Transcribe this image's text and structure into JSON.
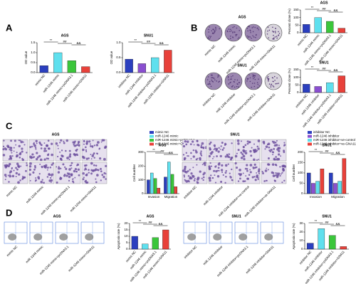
{
  "panel_labels": [
    "A",
    "B",
    "C",
    "D"
  ],
  "chart_data": [
    {
      "type": "bar",
      "title": "AGS",
      "y_label": "OD value",
      "categories": [
        "mimic NC",
        "miR-1246 mimic",
        "miR-1246 mimic+pcDNA3.1",
        "miR-1246 mimic+GNA11"
      ],
      "values": [
        0.35,
        1.0,
        0.6,
        0.3
      ],
      "colors": [
        "#2b3fbf",
        "#5fe0ee",
        "#3bc63b",
        "#e8413a"
      ],
      "ylim": [
        0,
        1.5
      ],
      "yticks": [
        {
          "value": 0,
          "label": "0.0"
        },
        0.5,
        {
          "value": 1,
          "label": "1.0"
        },
        1.5
      ],
      "annotations": [
        "**",
        "##",
        "&&"
      ]
    },
    {
      "type": "bar",
      "title": "SNU1",
      "y_label": "OD value",
      "categories": [
        "inhibitor NC",
        "miR-1246 inhibitor",
        "miR-1246 inhibitor+pcDNA3.1",
        "miR-1246 inhibitor+GNA11"
      ],
      "values": [
        0.45,
        0.3,
        0.5,
        0.75
      ],
      "colors": [
        "#2b3fbf",
        "#8a4fd0",
        "#5fe0ee",
        "#e8413a"
      ],
      "ylim": [
        0,
        1
      ],
      "yticks": [
        {
          "value": 0,
          "label": "0.0"
        },
        0.5,
        {
          "value": 1,
          "label": "1.0"
        }
      ],
      "annotations": [
        "**",
        "##",
        "&&"
      ]
    },
    {
      "type": "bar",
      "title": "AGS",
      "y_label": "Percent clone (%)",
      "categories": [
        "mimic NC",
        "miR-1246 mimic",
        "miR-1246 mimic+pcDNA3.1",
        "miR-1246 mimic+GNA11"
      ],
      "values": [
        55,
        100,
        75,
        30
      ],
      "colors": [
        "#2b3fbf",
        "#5fe0ee",
        "#3bc63b",
        "#e8413a"
      ],
      "ylim": [
        0,
        150
      ],
      "yticks": [
        0,
        50,
        100,
        150
      ],
      "annotations": [
        "**",
        "##",
        "&&"
      ]
    },
    {
      "type": "bar",
      "title": "SNU1",
      "y_label": "Percent clone (%)",
      "categories": [
        "inhibitor NC",
        "miR-1246 inhibitor",
        "miR-1246 inhibitor+pcDNA3.1",
        "miR-1246 inhibitor+GNA11"
      ],
      "values": [
        55,
        40,
        65,
        110
      ],
      "colors": [
        "#2b3fbf",
        "#8a4fd0",
        "#5fe0ee",
        "#e8413a"
      ],
      "ylim": [
        0,
        150
      ],
      "yticks": [
        0,
        50,
        100,
        150
      ],
      "annotations": [
        "**",
        "##",
        "&&"
      ]
    },
    {
      "type": "grouped_bar",
      "title": "AGS",
      "y_label": "Cell number",
      "categories": [
        "Invasion",
        "Migration"
      ],
      "series": [
        {
          "name": "mimic NC",
          "color": "#2b3fbf",
          "values": [
            100,
            120
          ]
        },
        {
          "name": "miR-1246 mimic",
          "color": "#5fe0ee",
          "values": [
            150,
            230
          ]
        },
        {
          "name": "miR-1246 mimic+pcDNA3.1",
          "color": "#3bc63b",
          "values": [
            110,
            140
          ]
        },
        {
          "name": "miR-1246 mimic+GNA11",
          "color": "#e8413a",
          "values": [
            40,
            50
          ]
        }
      ],
      "ylim": [
        0,
        300
      ],
      "yticks": [
        0,
        100,
        200,
        300
      ],
      "annotations": [
        "**",
        "##",
        "&&"
      ]
    },
    {
      "type": "grouped_bar",
      "title": "SNU1",
      "y_label": "Cell number",
      "categories": [
        "Invasion",
        "Migration"
      ],
      "series": [
        {
          "name": "inhibitor NC",
          "color": "#2b3fbf",
          "values": [
            100,
            100
          ]
        },
        {
          "name": "miR-1246 inhibitor",
          "color": "#8a4fd0",
          "values": [
            50,
            50
          ]
        },
        {
          "name": "miR-1246 inhibitor+ve-control",
          "color": "#5fe0ee",
          "values": [
            60,
            60
          ]
        },
        {
          "name": "miR-1246 inhibitor+ve-GNA11",
          "color": "#e8413a",
          "values": [
            120,
            170
          ]
        }
      ],
      "ylim": [
        0,
        200
      ],
      "yticks": [
        0,
        50,
        100,
        150,
        200
      ],
      "annotations": [
        "**",
        "##",
        "&&"
      ]
    },
    {
      "type": "bar",
      "title": "AGS",
      "y_label": "Apoptosis rate (%)",
      "categories": [
        "mimic NC",
        "miR-1246 mimic",
        "miR-1246 mimic+pcDNA3.1",
        "miR-1246 mimic+GNA11"
      ],
      "values": [
        10,
        4,
        9,
        15
      ],
      "colors": [
        "#2b3fbf",
        "#5fe0ee",
        "#3bc63b",
        "#e8413a"
      ],
      "ylim": [
        0,
        20
      ],
      "yticks": [
        0,
        5,
        10,
        15,
        20
      ],
      "annotations": [
        "**",
        "##",
        "&&"
      ]
    },
    {
      "type": "bar",
      "title": "SNU1",
      "y_label": "Apoptosis rate (%)",
      "categories": [
        "inhibitor NC",
        "miR-1246 inhibitor",
        "miR-1246 inhibitor+pcDNA3.1",
        "miR-1246 inhibitor+GNA11"
      ],
      "values": [
        7,
        24,
        16,
        3
      ],
      "colors": [
        "#2b3fbf",
        "#5fe0ee",
        "#3bc63b",
        "#e8413a"
      ],
      "ylim": [
        0,
        30
      ],
      "yticks": [
        0,
        10,
        20,
        30
      ],
      "annotations": [
        "**",
        "##",
        "&&"
      ]
    }
  ]
}
